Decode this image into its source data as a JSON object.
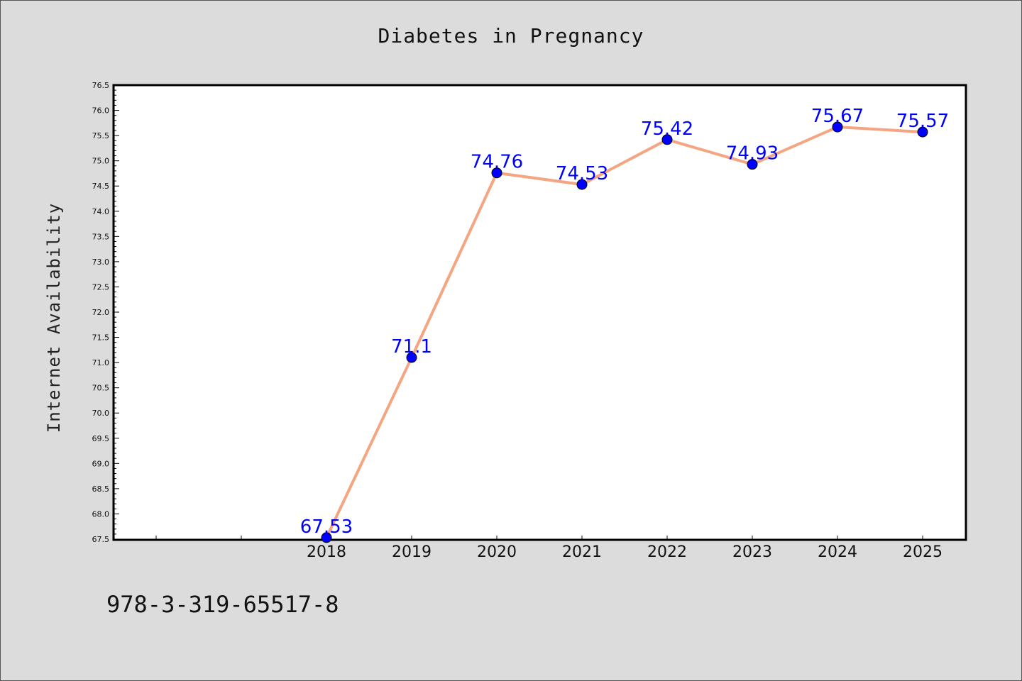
{
  "chart_data": {
    "type": "line",
    "title": "Diabetes in Pregnancy",
    "xlabel": "",
    "ylabel": "Internet Availability",
    "x": [
      "2018",
      "2019",
      "2020",
      "2021",
      "2022",
      "2023",
      "2024",
      "2025"
    ],
    "series": [
      {
        "values": [
          67.53,
          71.1,
          74.76,
          74.53,
          75.42,
          74.93,
          75.67,
          75.57
        ]
      }
    ],
    "data_labels": [
      "67.53",
      "71.1",
      "74.76",
      "74.53",
      "75.42",
      "74.93",
      "75.67",
      "75.57"
    ],
    "ylim": [
      67.5,
      76.5
    ],
    "yticks": [
      "67.5",
      "68.0",
      "68.5",
      "69.0",
      "69.5",
      "70.0",
      "70.5",
      "71.0",
      "71.5",
      "72.0",
      "72.5",
      "73.0",
      "73.5",
      "74.0",
      "74.5",
      "75.0",
      "75.5",
      "76.0",
      "76.5"
    ],
    "grid": false,
    "line_color": "#f4a582",
    "marker_color": "#0000ff",
    "label_color": "#0000ff"
  },
  "footnote": "978-3-319-65517-8"
}
